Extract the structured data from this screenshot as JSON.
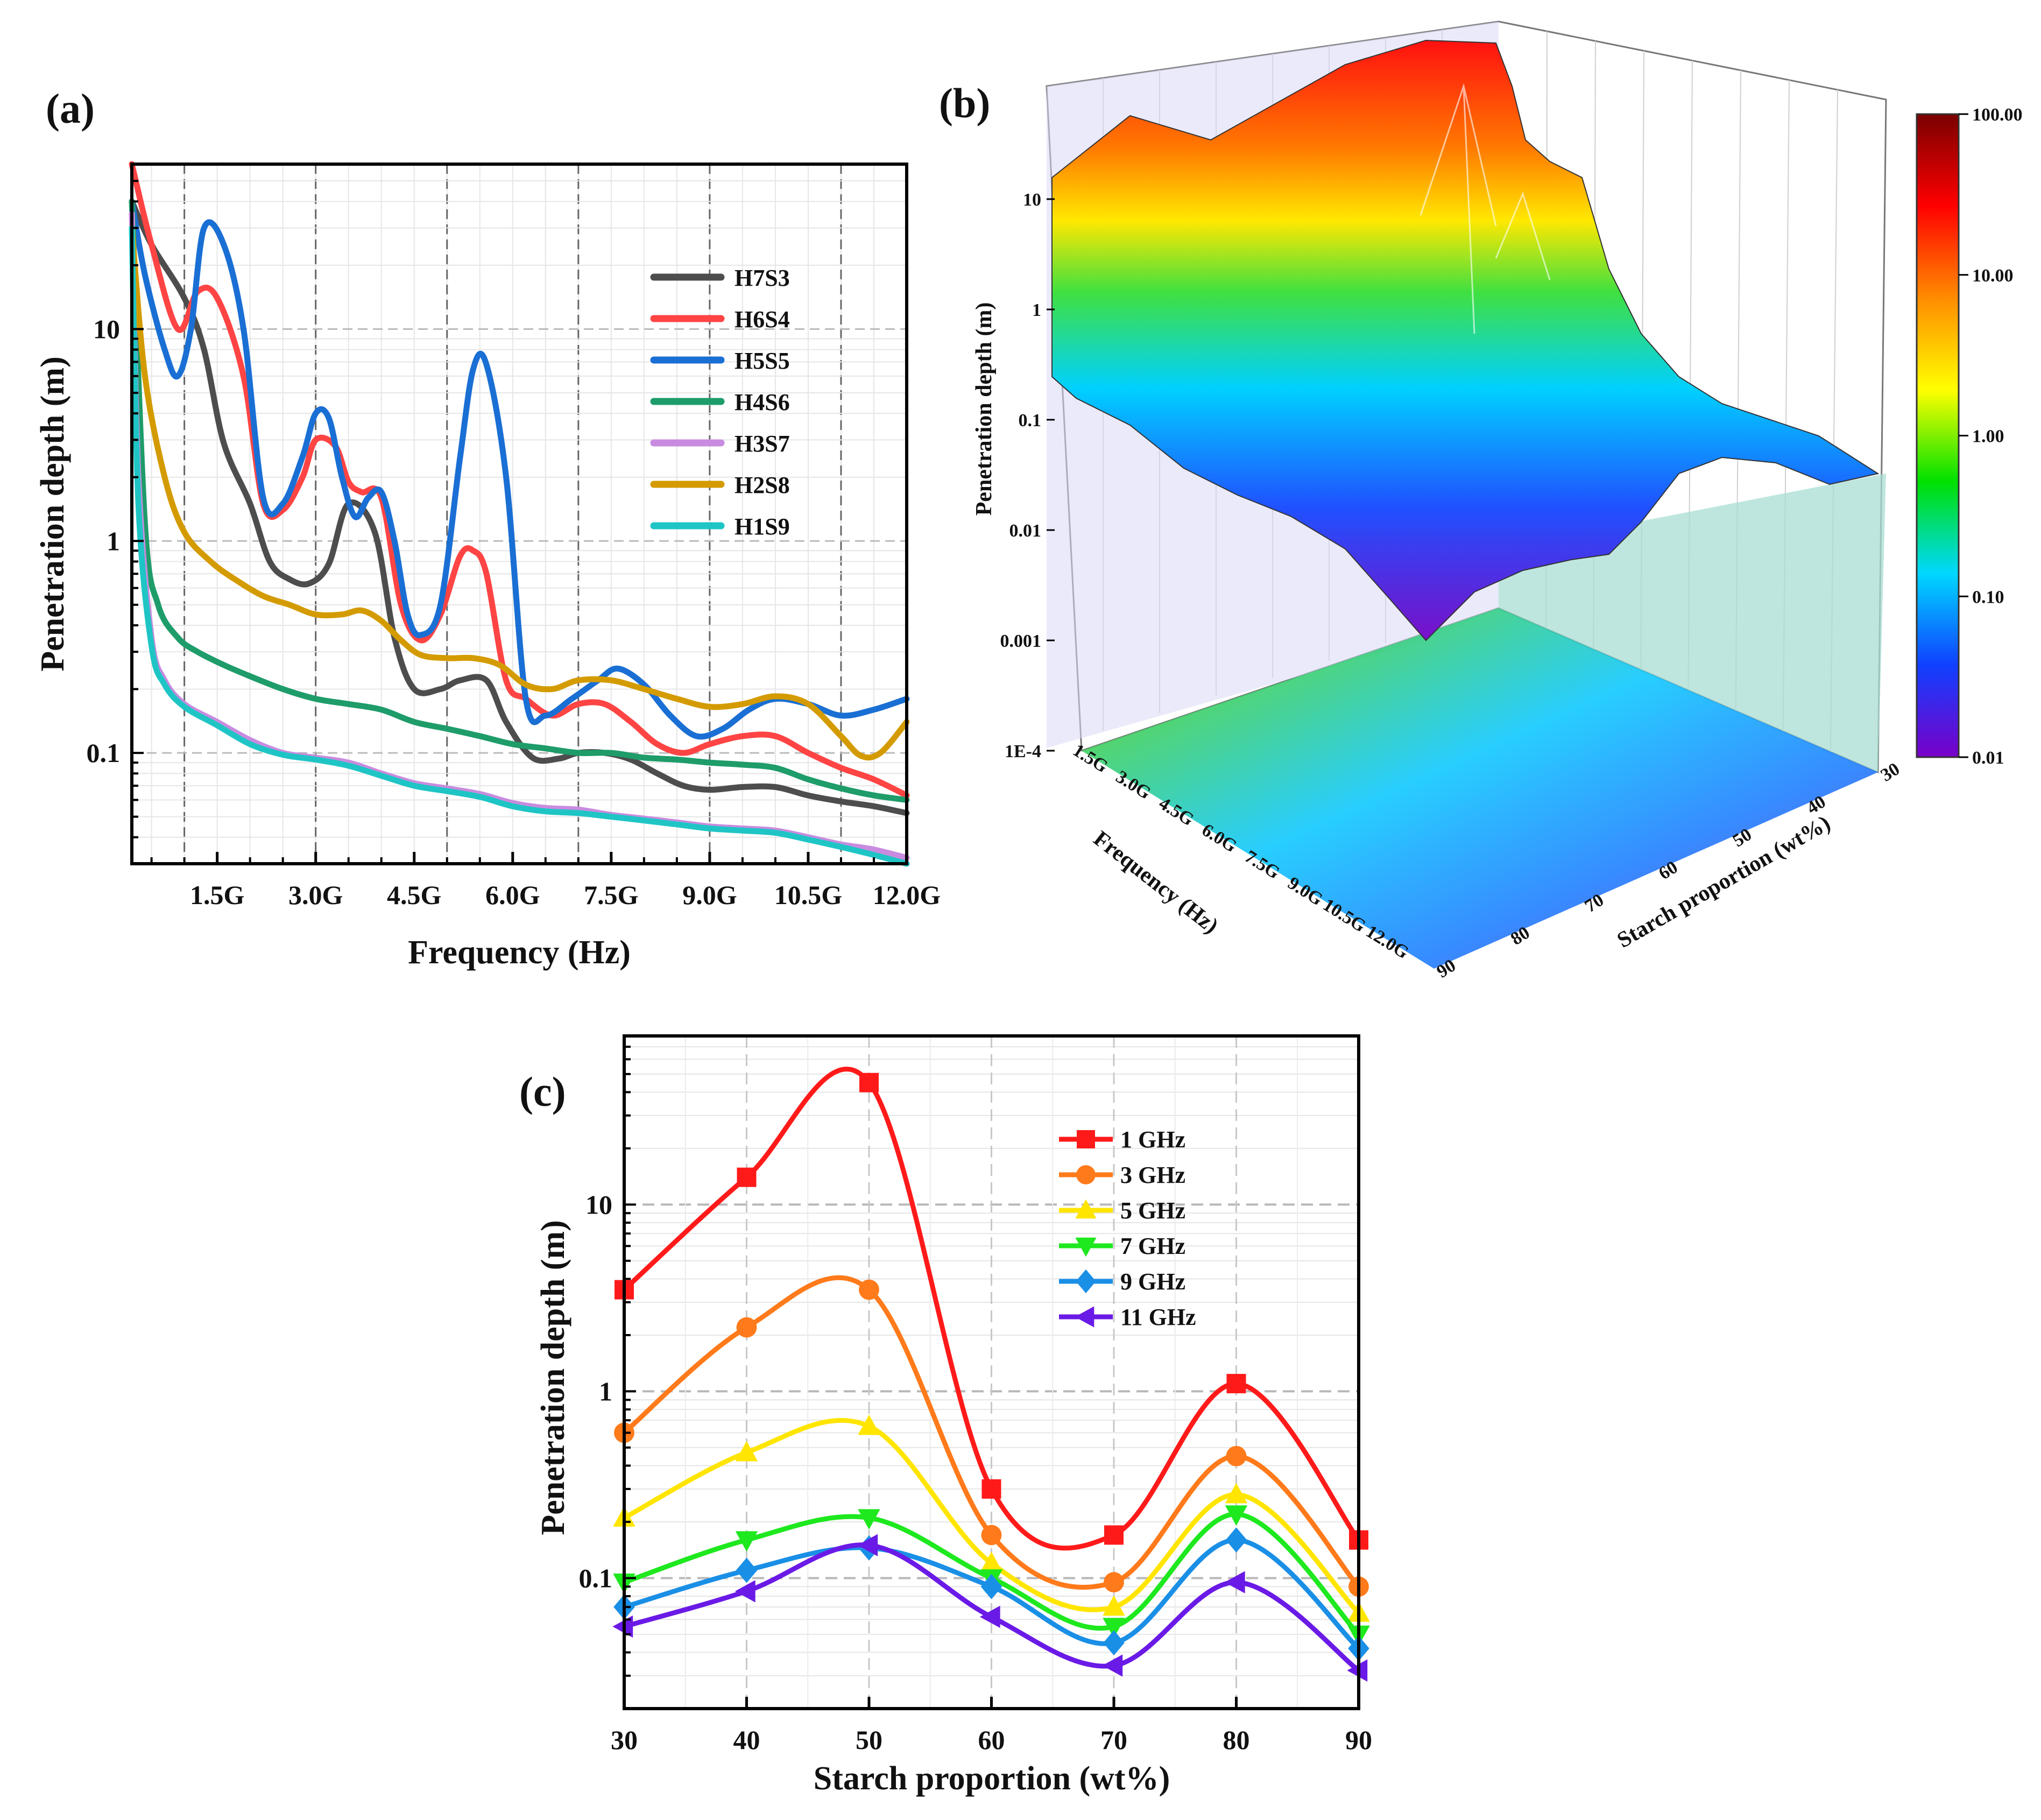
{
  "chart_data": [
    {
      "panel": "(a)",
      "type": "line",
      "xlabel": "Frequency (Hz)",
      "ylabel": "Penetration depth (m)",
      "yscale": "log",
      "xlim": [
        0.2,
        12.0
      ],
      "ylim": [
        0.03,
        60
      ],
      "x_ticks": [
        1.5,
        3.0,
        4.5,
        6.0,
        7.5,
        9.0,
        10.5,
        12.0
      ],
      "x_tick_labels": [
        "1.5G",
        "3.0G",
        "4.5G",
        "6.0G",
        "7.5G",
        "9.0G",
        "10.5G",
        "12.0G"
      ],
      "y_ticks": [
        0.1,
        1,
        10
      ],
      "y_tick_labels": [
        "0.1",
        "1",
        "10"
      ],
      "series": [
        {
          "name": "H7S3",
          "color": "#4d4d4d",
          "x": [
            0.2,
            0.5,
            1.0,
            1.3,
            1.6,
            2.0,
            2.3,
            2.6,
            2.9,
            3.2,
            3.5,
            3.9,
            4.2,
            4.5,
            4.9,
            5.2,
            5.6,
            5.9,
            6.3,
            6.7,
            7.0,
            7.4,
            7.8,
            8.2,
            8.6,
            9.0,
            9.5,
            10.0,
            10.5,
            11.0,
            11.5,
            12.0
          ],
          "y": [
            40,
            25,
            14,
            8,
            2.9,
            1.5,
            0.8,
            0.66,
            0.63,
            0.78,
            1.5,
            1.1,
            0.35,
            0.2,
            0.2,
            0.22,
            0.22,
            0.14,
            0.095,
            0.094,
            0.1,
            0.1,
            0.093,
            0.08,
            0.07,
            0.067,
            0.069,
            0.069,
            0.063,
            0.059,
            0.056,
            0.052
          ]
        },
        {
          "name": "H6S4",
          "color": "#ff4444",
          "x": [
            0.2,
            0.5,
            0.9,
            1.2,
            1.5,
            1.9,
            2.2,
            2.5,
            2.8,
            3.0,
            3.3,
            3.5,
            3.7,
            4.0,
            4.3,
            4.6,
            4.9,
            5.2,
            5.4,
            5.6,
            5.9,
            6.2,
            6.6,
            7.0,
            7.4,
            7.8,
            8.2,
            8.6,
            9.0,
            9.5,
            10.0,
            10.5,
            11.0,
            11.5,
            12.0
          ],
          "y": [
            60,
            25,
            10,
            15,
            14,
            6,
            1.5,
            1.4,
            2.0,
            3.0,
            2.8,
            1.9,
            1.7,
            1.6,
            0.5,
            0.34,
            0.45,
            0.85,
            0.9,
            0.7,
            0.22,
            0.18,
            0.15,
            0.17,
            0.17,
            0.14,
            0.11,
            0.1,
            0.11,
            0.12,
            0.12,
            0.1,
            0.085,
            0.075,
            0.063
          ]
        },
        {
          "name": "H5S5",
          "color": "#1a6fd4",
          "x": [
            0.2,
            0.4,
            0.7,
            0.9,
            1.1,
            1.3,
            1.6,
            1.9,
            2.2,
            2.5,
            2.8,
            3.0,
            3.2,
            3.4,
            3.6,
            3.8,
            4.0,
            4.2,
            4.4,
            4.6,
            4.9,
            5.2,
            5.4,
            5.6,
            5.9,
            6.2,
            6.5,
            6.9,
            7.3,
            7.6,
            8.0,
            8.4,
            8.8,
            9.2,
            9.6,
            10.0,
            10.5,
            11.0,
            11.5,
            12.0
          ],
          "y": [
            40,
            18,
            8,
            6,
            10,
            30,
            25,
            10,
            1.6,
            1.5,
            2.5,
            4.0,
            3.8,
            2.0,
            1.3,
            1.6,
            1.7,
            1.0,
            0.45,
            0.36,
            0.5,
            2.5,
            6.5,
            6.8,
            2.0,
            0.18,
            0.15,
            0.18,
            0.22,
            0.25,
            0.21,
            0.15,
            0.12,
            0.13,
            0.16,
            0.18,
            0.17,
            0.15,
            0.16,
            0.18
          ]
        },
        {
          "name": "H4S6",
          "color": "#1e9c6a",
          "x": [
            0.2,
            0.4,
            0.6,
            0.9,
            1.2,
            1.6,
            2.0,
            2.5,
            3.0,
            3.5,
            4.0,
            4.5,
            5.0,
            5.5,
            6.0,
            6.5,
            7.0,
            7.5,
            8.0,
            8.5,
            9.0,
            9.5,
            10.0,
            10.5,
            11.0,
            11.5,
            12.0
          ],
          "y": [
            40,
            1.2,
            0.5,
            0.35,
            0.3,
            0.26,
            0.23,
            0.2,
            0.18,
            0.17,
            0.16,
            0.14,
            0.13,
            0.12,
            0.11,
            0.105,
            0.1,
            0.1,
            0.095,
            0.093,
            0.09,
            0.088,
            0.085,
            0.075,
            0.068,
            0.063,
            0.06
          ]
        },
        {
          "name": "H3S7",
          "color": "#c98be0",
          "x": [
            0.2,
            0.3,
            0.5,
            0.7,
            1.0,
            1.5,
            2.0,
            2.5,
            3.0,
            3.5,
            4.0,
            4.5,
            5.0,
            5.5,
            6.0,
            6.5,
            7.0,
            7.5,
            8.0,
            8.5,
            9.0,
            9.5,
            10.0,
            10.5,
            11.0,
            11.5,
            12.0
          ],
          "y": [
            35,
            2.0,
            0.35,
            0.22,
            0.17,
            0.14,
            0.115,
            0.1,
            0.095,
            0.09,
            0.08,
            0.072,
            0.068,
            0.064,
            0.058,
            0.055,
            0.054,
            0.051,
            0.049,
            0.047,
            0.045,
            0.044,
            0.043,
            0.04,
            0.037,
            0.035,
            0.032
          ]
        },
        {
          "name": "H2S8",
          "color": "#d49b00",
          "x": [
            0.2,
            0.4,
            0.7,
            1.0,
            1.4,
            1.8,
            2.2,
            2.6,
            3.0,
            3.4,
            3.7,
            4.0,
            4.3,
            4.6,
            5.0,
            5.4,
            5.8,
            6.2,
            6.6,
            7.0,
            7.5,
            8.0,
            8.5,
            9.0,
            9.5,
            10.0,
            10.5,
            11.0,
            11.3,
            11.6,
            12.0
          ],
          "y": [
            30,
            6,
            2.0,
            1.1,
            0.8,
            0.65,
            0.55,
            0.5,
            0.45,
            0.45,
            0.47,
            0.42,
            0.34,
            0.29,
            0.28,
            0.28,
            0.26,
            0.21,
            0.2,
            0.22,
            0.22,
            0.2,
            0.18,
            0.165,
            0.17,
            0.185,
            0.17,
            0.12,
            0.097,
            0.1,
            0.14
          ]
        },
        {
          "name": "H1S9",
          "color": "#1fc5c5",
          "x": [
            0.2,
            0.3,
            0.5,
            0.7,
            1.0,
            1.5,
            2.0,
            2.5,
            3.0,
            3.5,
            4.0,
            4.5,
            5.0,
            5.5,
            6.0,
            6.5,
            7.0,
            7.5,
            8.0,
            8.5,
            9.0,
            9.5,
            10.0,
            10.5,
            11.0,
            11.5,
            12.0
          ],
          "y": [
            30,
            1.5,
            0.32,
            0.21,
            0.165,
            0.135,
            0.11,
            0.098,
            0.093,
            0.087,
            0.078,
            0.07,
            0.066,
            0.062,
            0.056,
            0.053,
            0.052,
            0.05,
            0.048,
            0.046,
            0.044,
            0.043,
            0.042,
            0.039,
            0.036,
            0.033,
            0.03
          ]
        }
      ]
    },
    {
      "panel": "(b)",
      "type": "surface3d",
      "xlabel": "Frequency (Hz)",
      "ylabel": "Starch proportion (wt%)",
      "zlabel": "Penetration depth (m)",
      "x_tick_labels": [
        "1.5G",
        "3.0G",
        "4.5G",
        "6.0G",
        "7.5G",
        "9.0G",
        "10.5G",
        "12.0G"
      ],
      "y_tick_labels": [
        "30",
        "40",
        "50",
        "60",
        "70",
        "80",
        "90"
      ],
      "z_tick_labels": [
        "1E-4",
        "0.001",
        "0.01",
        "0.1",
        "1",
        "10"
      ],
      "colorbar_labels": [
        "100.00",
        "10.00",
        "1.00",
        "0.10",
        "0.01"
      ],
      "colorbar_colors": [
        "#7a0000",
        "#ff0000",
        "#ff8c00",
        "#ffff00",
        "#00e000",
        "#00d8ff",
        "#1040ff",
        "#7a00c8"
      ]
    },
    {
      "panel": "(c)",
      "type": "line",
      "xlabel": "Starch proportion (wt%)",
      "ylabel": "Penetration depth (m)",
      "yscale": "log",
      "xlim": [
        30,
        90
      ],
      "ylim": [
        0.02,
        80
      ],
      "x_ticks": [
        30,
        40,
        50,
        60,
        70,
        80,
        90
      ],
      "x_tick_labels": [
        "30",
        "40",
        "50",
        "60",
        "70",
        "80",
        "90"
      ],
      "y_ticks": [
        0.1,
        1,
        10
      ],
      "y_tick_labels": [
        "0.1",
        "1",
        "10"
      ],
      "categories": [
        30,
        40,
        50,
        60,
        70,
        80,
        90
      ],
      "series": [
        {
          "name": "1 GHz",
          "color": "#ff1a1a",
          "marker": "square",
          "values": [
            3.5,
            14,
            45,
            0.3,
            0.17,
            1.1,
            0.16
          ]
        },
        {
          "name": "3 GHz",
          "color": "#ff7a1a",
          "marker": "circle",
          "values": [
            0.6,
            2.2,
            3.5,
            0.17,
            0.095,
            0.45,
            0.09
          ]
        },
        {
          "name": "5 GHz",
          "color": "#ffe500",
          "marker": "triangle-up",
          "values": [
            0.21,
            0.47,
            0.65,
            0.12,
            0.07,
            0.28,
            0.065
          ]
        },
        {
          "name": "7 GHz",
          "color": "#1ee81e",
          "marker": "triangle-down",
          "values": [
            0.095,
            0.16,
            0.21,
            0.1,
            0.055,
            0.22,
            0.05
          ]
        },
        {
          "name": "9 GHz",
          "color": "#1a8fe6",
          "marker": "diamond",
          "values": [
            0.07,
            0.11,
            0.145,
            0.09,
            0.045,
            0.16,
            0.042
          ]
        },
        {
          "name": "11 GHz",
          "color": "#6a1ae6",
          "marker": "triangle-left",
          "values": [
            0.055,
            0.085,
            0.15,
            0.062,
            0.034,
            0.095,
            0.032
          ]
        }
      ]
    }
  ]
}
